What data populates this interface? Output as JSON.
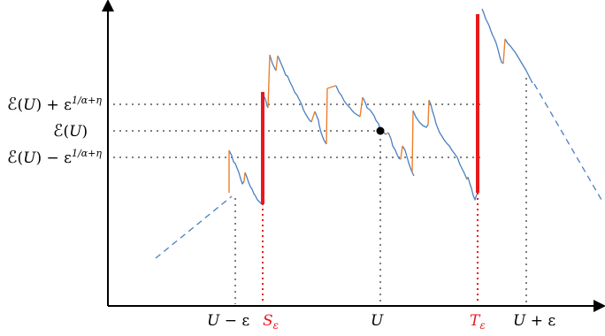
{
  "labels": {
    "y_upper": {
      "E": "ℰ",
      "U": "U",
      "rest": "+ ε",
      "exp": "1/α+η"
    },
    "y_mid": {
      "E": "ℰ",
      "U": "U"
    },
    "y_lower": {
      "E": "ℰ",
      "U": "U",
      "rest": "− ε",
      "exp": "1/α+η"
    },
    "x_u_minus": {
      "U": "U",
      "rest": "− ε"
    },
    "x_s": {
      "S": "S",
      "sub": "ε"
    },
    "x_u": "U",
    "x_t": {
      "T": "T",
      "sub": "ε"
    },
    "x_u_plus": {
      "U": "U",
      "rest": "+ ε"
    }
  },
  "colors": {
    "axis": "#000000",
    "path": "#4a7fc1",
    "jump": "#ee7f2d",
    "highlight": "#e8191c",
    "dotted": "#808080",
    "dashed": "#4a7fc1"
  }
}
